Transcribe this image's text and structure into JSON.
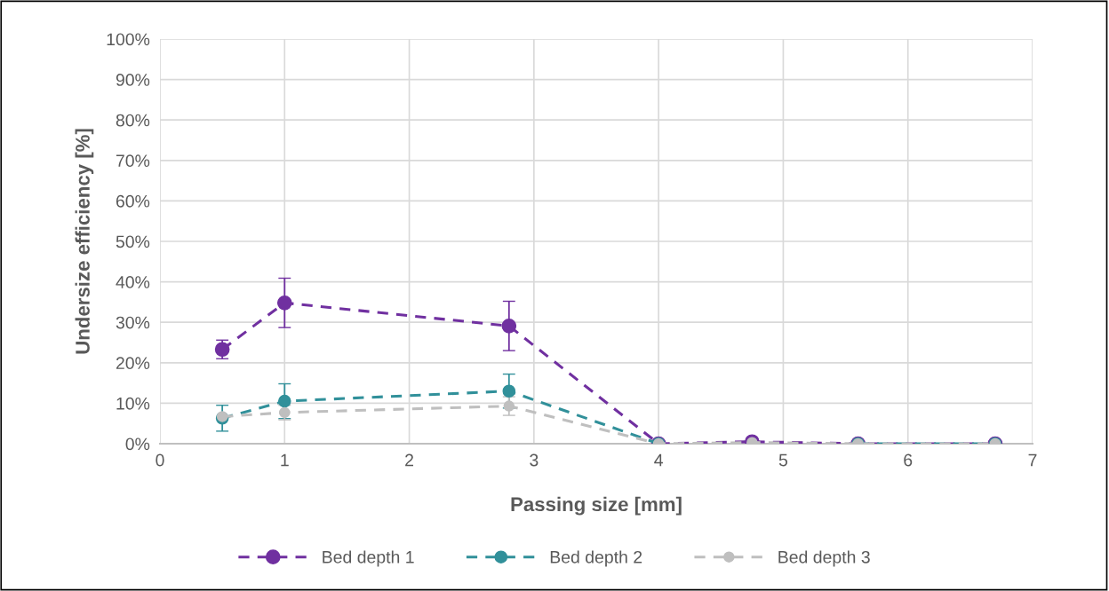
{
  "chart_data": {
    "type": "line",
    "xlabel": "Passing size [mm]",
    "ylabel": "Undersize efficiency [%]",
    "x": [
      0.5,
      1,
      2.8,
      4,
      4.75,
      5.6,
      6.7
    ],
    "series": [
      {
        "name": "Bed depth 1",
        "color": "#7030a0",
        "values": [
          23.3,
          34.8,
          29.1,
          0,
          0.5,
          0,
          0
        ],
        "errors": [
          2.3,
          6.1,
          6.1,
          null,
          null,
          null,
          null
        ]
      },
      {
        "name": "Bed depth 2",
        "color": "#31909a",
        "values": [
          6.3,
          10.5,
          13,
          0,
          null,
          0,
          0
        ],
        "errors": [
          3.2,
          4.3,
          4.2,
          null,
          null,
          null,
          null
        ]
      },
      {
        "name": "Bed depth 3",
        "color": "#bfbfbf",
        "values": [
          6.7,
          7.7,
          9.3,
          0,
          0.3,
          0,
          0
        ],
        "errors": [
          null,
          1.8,
          2.3,
          null,
          null,
          null,
          null
        ]
      }
    ],
    "xlim": [
      0,
      7
    ],
    "xticks": [
      0,
      1,
      2,
      3,
      4,
      5,
      6,
      7
    ],
    "ylim": [
      0,
      100
    ],
    "yticks": [
      {
        "value": 0,
        "label": "0%"
      },
      {
        "value": 10,
        "label": "10%"
      },
      {
        "value": 20,
        "label": "20%"
      },
      {
        "value": 30,
        "label": "30%"
      },
      {
        "value": 40,
        "label": "40%"
      },
      {
        "value": 50,
        "label": "50%"
      },
      {
        "value": 60,
        "label": "60%"
      },
      {
        "value": 70,
        "label": "70%"
      },
      {
        "value": 80,
        "label": "80%"
      },
      {
        "value": 90,
        "label": "90%"
      },
      {
        "value": 100,
        "label": "100%"
      }
    ],
    "grid": true,
    "legend": "bottom",
    "marker": "circle",
    "line_style": "dashed"
  }
}
